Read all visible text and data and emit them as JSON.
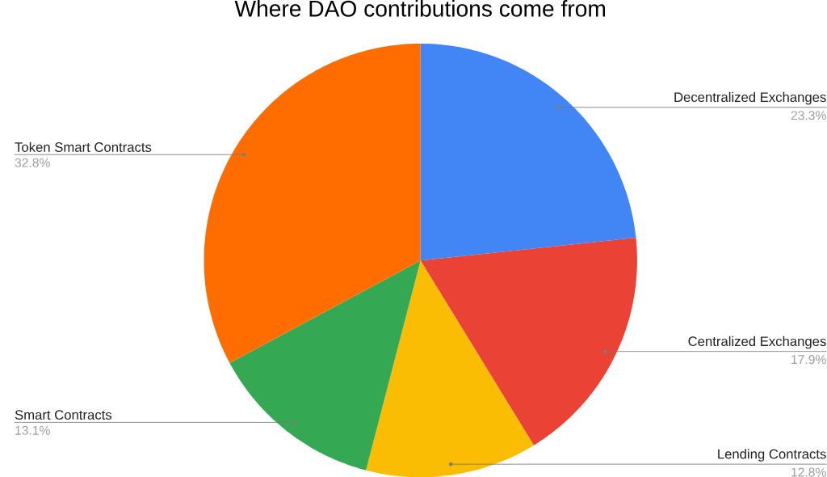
{
  "chart_data": {
    "type": "pie",
    "title": "Where DAO contributions come from",
    "categories": [
      "Decentralized Exchanges",
      "Centralized Exchanges",
      "Lending Contracts",
      "Smart Contracts",
      "Token Smart Contracts"
    ],
    "values": [
      23.3,
      17.9,
      12.8,
      13.1,
      32.8
    ],
    "colors": [
      "#4285f4",
      "#ea4335",
      "#fbbc04",
      "#34a853",
      "#ff6d01"
    ],
    "value_labels": [
      "23.3%",
      "17.9%",
      "12.8%",
      "13.1%",
      "32.8%"
    ]
  }
}
